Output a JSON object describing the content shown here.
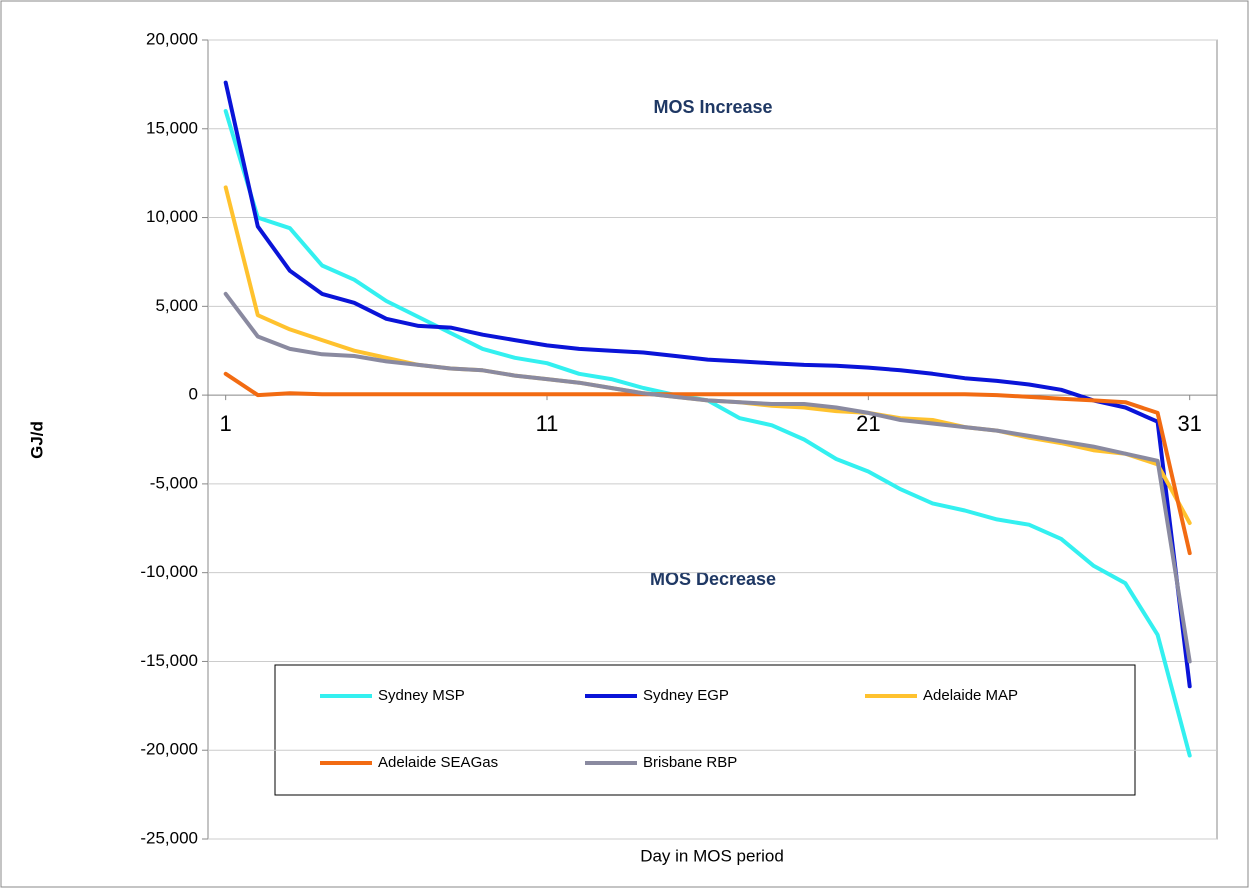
{
  "chart_data": {
    "type": "line",
    "x_label": "Day in MOS period",
    "y_label": "GJ/d",
    "annotations": [
      "MOS Increase",
      "MOS Decrease"
    ],
    "x": [
      1,
      2,
      3,
      4,
      5,
      6,
      7,
      8,
      9,
      10,
      11,
      12,
      13,
      14,
      15,
      16,
      17,
      18,
      19,
      20,
      21,
      22,
      23,
      24,
      25,
      26,
      27,
      28,
      29,
      30,
      31
    ],
    "xlim": [
      0.45,
      31.85
    ],
    "xticks": [
      1,
      11,
      21,
      31
    ],
    "ylim": [
      -25000,
      20000
    ],
    "yticks": [
      {
        "value": -25000,
        "label": "-25,000"
      },
      {
        "value": -20000,
        "label": "-20,000"
      },
      {
        "value": -15000,
        "label": "-15,000"
      },
      {
        "value": -10000,
        "label": "-10,000"
      },
      {
        "value": -5000,
        "label": "-5,000"
      },
      0,
      {
        "value": 5000,
        "label": "5,000"
      },
      {
        "value": 10000,
        "label": "10,000"
      },
      {
        "value": 15000,
        "label": "15,000"
      },
      {
        "value": 20000,
        "label": "20,000"
      }
    ],
    "grid": true,
    "series": [
      {
        "name": "Sydney MSP",
        "color": "#33f0f0",
        "values": [
          16000,
          10000,
          9400,
          7300,
          6500,
          5300,
          4400,
          3500,
          2600,
          2100,
          1800,
          1200,
          900,
          400,
          0,
          -300,
          -1300,
          -1700,
          -2500,
          -3600,
          -4300,
          -5300,
          -6100,
          -6500,
          -7000,
          -7300,
          -8100,
          -9600,
          -10600,
          -13500,
          -20300
        ]
      },
      {
        "name": "Sydney EGP",
        "color": "#0a14d8",
        "values": [
          17600,
          9500,
          7000,
          5700,
          5200,
          4300,
          3900,
          3800,
          3400,
          3100,
          2800,
          2600,
          2500,
          2400,
          2200,
          2000,
          1900,
          1800,
          1700,
          1650,
          1550,
          1400,
          1200,
          950,
          800,
          600,
          300,
          -300,
          -700,
          -1500,
          -16400
        ]
      },
      {
        "name": "Adelaide MAP",
        "color": "#ffc22e",
        "values": [
          11700,
          4500,
          3700,
          3100,
          2500,
          2100,
          1700,
          1500,
          1400,
          1100,
          900,
          700,
          400,
          100,
          -100,
          -300,
          -400,
          -600,
          -700,
          -900,
          -1000,
          -1300,
          -1400,
          -1800,
          -2000,
          -2400,
          -2700,
          -3100,
          -3300,
          -3900,
          -7200
        ]
      },
      {
        "name": "Adelaide SEAGas",
        "color": "#f26b12",
        "values": [
          1200,
          0,
          100,
          50,
          50,
          50,
          50,
          50,
          50,
          50,
          50,
          50,
          50,
          50,
          50,
          50,
          50,
          50,
          50,
          50,
          50,
          50,
          50,
          50,
          0,
          -100,
          -200,
          -300,
          -400,
          -1000,
          -8900
        ]
      },
      {
        "name": "Brisbane RBP",
        "color": "#8a8aa0",
        "values": [
          5700,
          3300,
          2600,
          2300,
          2200,
          1900,
          1700,
          1500,
          1400,
          1100,
          900,
          700,
          400,
          100,
          -100,
          -300,
          -400,
          -500,
          -500,
          -700,
          -1000,
          -1400,
          -1600,
          -1800,
          -2000,
          -2300,
          -2600,
          -2900,
          -3300,
          -3700,
          -15000
        ]
      }
    ]
  }
}
